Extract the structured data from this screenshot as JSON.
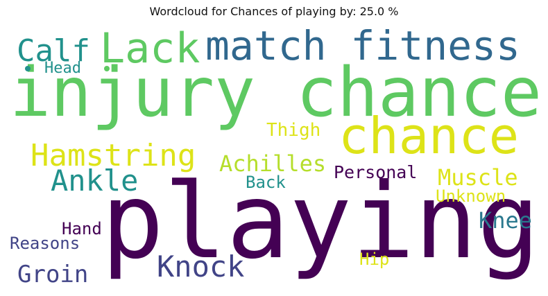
{
  "title": "Wordcloud for Chances of playing by: 25.0 %",
  "words": [
    {
      "text": "injury chance",
      "color": "#5ec962"
    },
    {
      "text": "playing",
      "color": "#440154"
    },
    {
      "text": "chance",
      "color": "#dde318"
    },
    {
      "text": "match fitness",
      "color": "#31688e"
    },
    {
      "text": "Lack",
      "color": "#5ec962"
    },
    {
      "text": "Calf",
      "color": "#21918c"
    },
    {
      "text": "Head",
      "color": "#21918c"
    },
    {
      "text": "Hamstring",
      "color": "#dde318"
    },
    {
      "text": "Ankle",
      "color": "#21918c"
    },
    {
      "text": "Achilles",
      "color": "#b5de2b"
    },
    {
      "text": "Thigh",
      "color": "#dde318"
    },
    {
      "text": "Personal",
      "color": "#440154"
    },
    {
      "text": "Muscle",
      "color": "#dde318"
    },
    {
      "text": "Unknown",
      "color": "#dde318"
    },
    {
      "text": "Back",
      "color": "#21918c"
    },
    {
      "text": "Knee",
      "color": "#2a788e"
    },
    {
      "text": "Hand",
      "color": "#440154"
    },
    {
      "text": "Reasons",
      "color": "#414487"
    },
    {
      "text": "Knock",
      "color": "#414487"
    },
    {
      "text": "Groin",
      "color": "#414487"
    },
    {
      "text": "Hip",
      "color": "#dde318"
    }
  ]
}
